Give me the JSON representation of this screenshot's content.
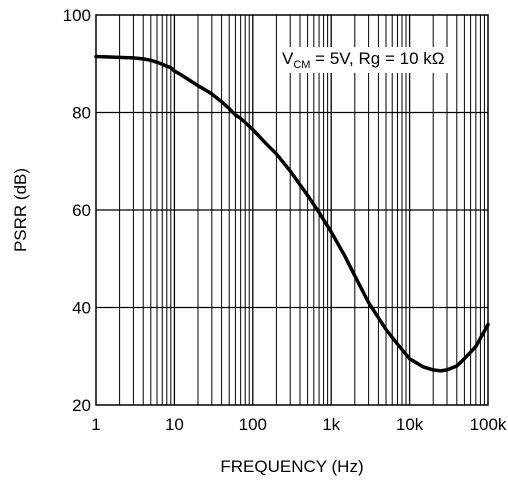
{
  "chart_data": {
    "type": "line",
    "title": "",
    "xlabel": "FREQUENCY (Hz)",
    "ylabel": "PSRR (dB)",
    "x_scale": "log",
    "xlim": [
      1,
      100000
    ],
    "ylim": [
      20,
      100
    ],
    "grid": true,
    "x_tick_values": [
      1,
      10,
      100,
      1000,
      10000,
      100000
    ],
    "x_tick_labels": [
      "1",
      "10",
      "100",
      "1k",
      "10k",
      "100k"
    ],
    "y_tick_values": [
      20,
      40,
      60,
      80,
      100
    ],
    "y_tick_labels": [
      "20",
      "40",
      "60",
      "80",
      "100"
    ],
    "annotation": {
      "v_main": "V",
      "v_sub": "CM",
      "rest": " = 5V, Rg = 10 kΩ"
    },
    "colors": {
      "line": "#000000",
      "grid": "#000000"
    },
    "series": [
      {
        "x": [
          1,
          2,
          3,
          4,
          5,
          6,
          7,
          8,
          9,
          10,
          12,
          15,
          20,
          25,
          30,
          40,
          50,
          60,
          70,
          100,
          150,
          200,
          300,
          500,
          700,
          1000,
          1500,
          2000,
          3000,
          5000,
          7000,
          10000,
          15000,
          20000,
          25000,
          30000,
          40000,
          50000,
          70000,
          100000
        ],
        "y": [
          91.5,
          91.3,
          91.2,
          91.0,
          90.7,
          90.3,
          89.9,
          89.5,
          89.2,
          88.5,
          87.8,
          86.8,
          85.5,
          84.6,
          83.8,
          82.2,
          80.8,
          79.5,
          78.8,
          76.5,
          73.5,
          71.5,
          68.0,
          63.0,
          59.5,
          55.5,
          50.5,
          46.5,
          41.0,
          35.5,
          32.5,
          29.5,
          27.8,
          27.2,
          27.0,
          27.2,
          28.0,
          29.5,
          32.0,
          36.5
        ]
      }
    ]
  }
}
